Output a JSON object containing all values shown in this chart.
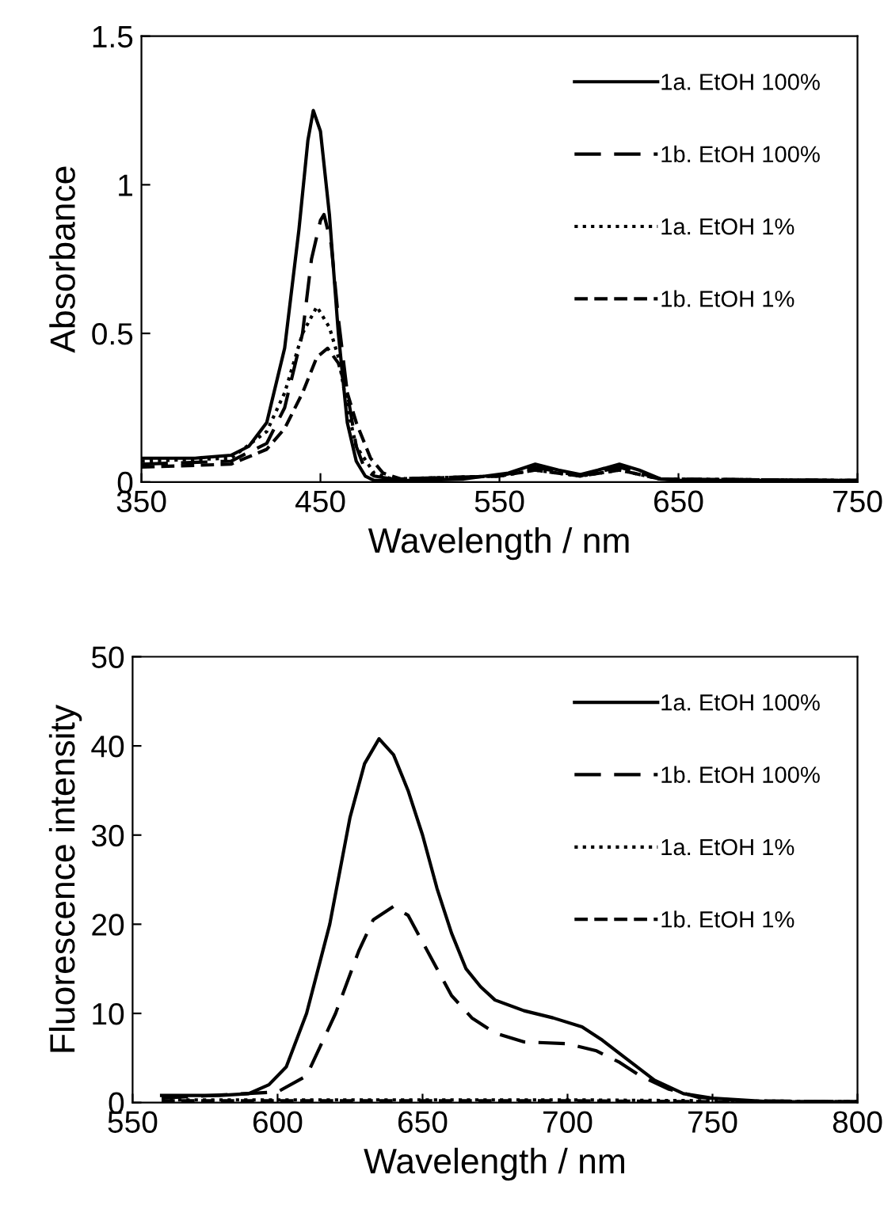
{
  "chart_data": [
    {
      "type": "line",
      "xlabel": "Wavelength / nm",
      "ylabel": "Absorbance",
      "xlim": [
        350,
        750
      ],
      "ylim": [
        0,
        1.5
      ],
      "xticks": [
        350,
        450,
        550,
        650,
        750
      ],
      "yticks": [
        0,
        0.5,
        1,
        1.5
      ],
      "legend": "top right",
      "grid": false,
      "series": [
        {
          "name": "1a. EtOH 100%",
          "color": "#000000",
          "line_style": "solid",
          "x": [
            350,
            380,
            400,
            410,
            420,
            430,
            438,
            443,
            446,
            450,
            455,
            460,
            465,
            470,
            475,
            480,
            500,
            530,
            555,
            570,
            583,
            595,
            605,
            617,
            628,
            640,
            650,
            700,
            750
          ],
          "values": [
            0.08,
            0.08,
            0.09,
            0.12,
            0.2,
            0.45,
            0.85,
            1.15,
            1.25,
            1.18,
            0.9,
            0.5,
            0.2,
            0.07,
            0.02,
            0.005,
            0.005,
            0.01,
            0.03,
            0.06,
            0.04,
            0.025,
            0.04,
            0.06,
            0.04,
            0.01,
            0.005,
            0.005,
            0.005
          ]
        },
        {
          "name": "1b. EtOH 100%",
          "color": "#000000",
          "line_style": "dashed",
          "x": [
            350,
            400,
            420,
            430,
            440,
            445,
            450,
            452,
            456,
            460,
            465,
            470,
            475,
            480,
            490,
            550,
            570,
            595,
            617,
            640,
            750
          ],
          "values": [
            0.06,
            0.07,
            0.13,
            0.25,
            0.5,
            0.75,
            0.88,
            0.9,
            0.8,
            0.55,
            0.3,
            0.12,
            0.04,
            0.02,
            0.01,
            0.02,
            0.05,
            0.02,
            0.05,
            0.01,
            0.005
          ]
        },
        {
          "name": "1a. EtOH 1%",
          "color": "#000000",
          "line_style": "dotted",
          "x": [
            350,
            400,
            420,
            430,
            440,
            448,
            455,
            460,
            465,
            470,
            480,
            490,
            550,
            570,
            595,
            617,
            640,
            750
          ],
          "values": [
            0.07,
            0.08,
            0.17,
            0.3,
            0.5,
            0.59,
            0.52,
            0.42,
            0.25,
            0.12,
            0.03,
            0.01,
            0.02,
            0.04,
            0.02,
            0.04,
            0.01,
            0.005
          ]
        },
        {
          "name": "1b. EtOH 1%",
          "color": "#000000",
          "line_style": "dashed",
          "x": [
            350,
            400,
            420,
            430,
            440,
            448,
            454,
            460,
            465,
            470,
            478,
            485,
            495,
            550,
            570,
            595,
            617,
            640,
            750
          ],
          "values": [
            0.05,
            0.06,
            0.11,
            0.18,
            0.3,
            0.42,
            0.45,
            0.4,
            0.3,
            0.2,
            0.08,
            0.03,
            0.01,
            0.02,
            0.04,
            0.02,
            0.04,
            0.01,
            0.005
          ]
        }
      ]
    },
    {
      "type": "line",
      "xlabel": "Wavelength / nm",
      "ylabel": "Fluorescence intensity",
      "xlim": [
        550,
        800
      ],
      "ylim": [
        0,
        50
      ],
      "xticks": [
        550,
        600,
        650,
        700,
        750,
        800
      ],
      "yticks": [
        0,
        10,
        20,
        30,
        40,
        50
      ],
      "legend": "top right",
      "grid": false,
      "series": [
        {
          "name": "1a. EtOH 100%",
          "color": "#000000",
          "line_style": "solid",
          "x": [
            560,
            580,
            590,
            597,
            603,
            610,
            618,
            625,
            630,
            635,
            640,
            645,
            650,
            655,
            660,
            665,
            670,
            675,
            685,
            695,
            705,
            712,
            720,
            730,
            740,
            750,
            770,
            800
          ],
          "values": [
            0.8,
            0.8,
            1.0,
            2,
            4,
            10,
            20,
            32,
            38,
            40.8,
            39,
            35,
            30,
            24,
            19,
            15,
            13,
            11.5,
            10.3,
            9.5,
            8.5,
            7,
            5,
            2.5,
            1,
            0.5,
            0.1,
            0.1
          ]
        },
        {
          "name": "1b. EtOH 100%",
          "color": "#000000",
          "line_style": "dashed",
          "x": [
            560,
            600,
            610,
            620,
            628,
            633,
            640,
            645,
            650,
            655,
            660,
            667,
            675,
            685,
            700,
            710,
            718,
            725,
            735,
            745,
            760,
            800
          ],
          "values": [
            0.5,
            1.2,
            3,
            10,
            17,
            20.5,
            22,
            21,
            18,
            15,
            12,
            9.5,
            7.8,
            6.8,
            6.6,
            5.8,
            4.5,
            3,
            1.5,
            0.6,
            0.2,
            0.1
          ]
        },
        {
          "name": "1a. EtOH 1%",
          "color": "#000000",
          "line_style": "dotted",
          "x": [
            560,
            600,
            650,
            700,
            750,
            800
          ],
          "values": [
            0.3,
            0.3,
            0.3,
            0.3,
            0.2,
            0.1
          ]
        },
        {
          "name": "1b. EtOH 1%",
          "color": "#000000",
          "line_style": "dashed",
          "x": [
            560,
            600,
            650,
            700,
            750,
            800
          ],
          "values": [
            0.2,
            0.2,
            0.2,
            0.2,
            0.1,
            0.1
          ]
        }
      ]
    }
  ]
}
